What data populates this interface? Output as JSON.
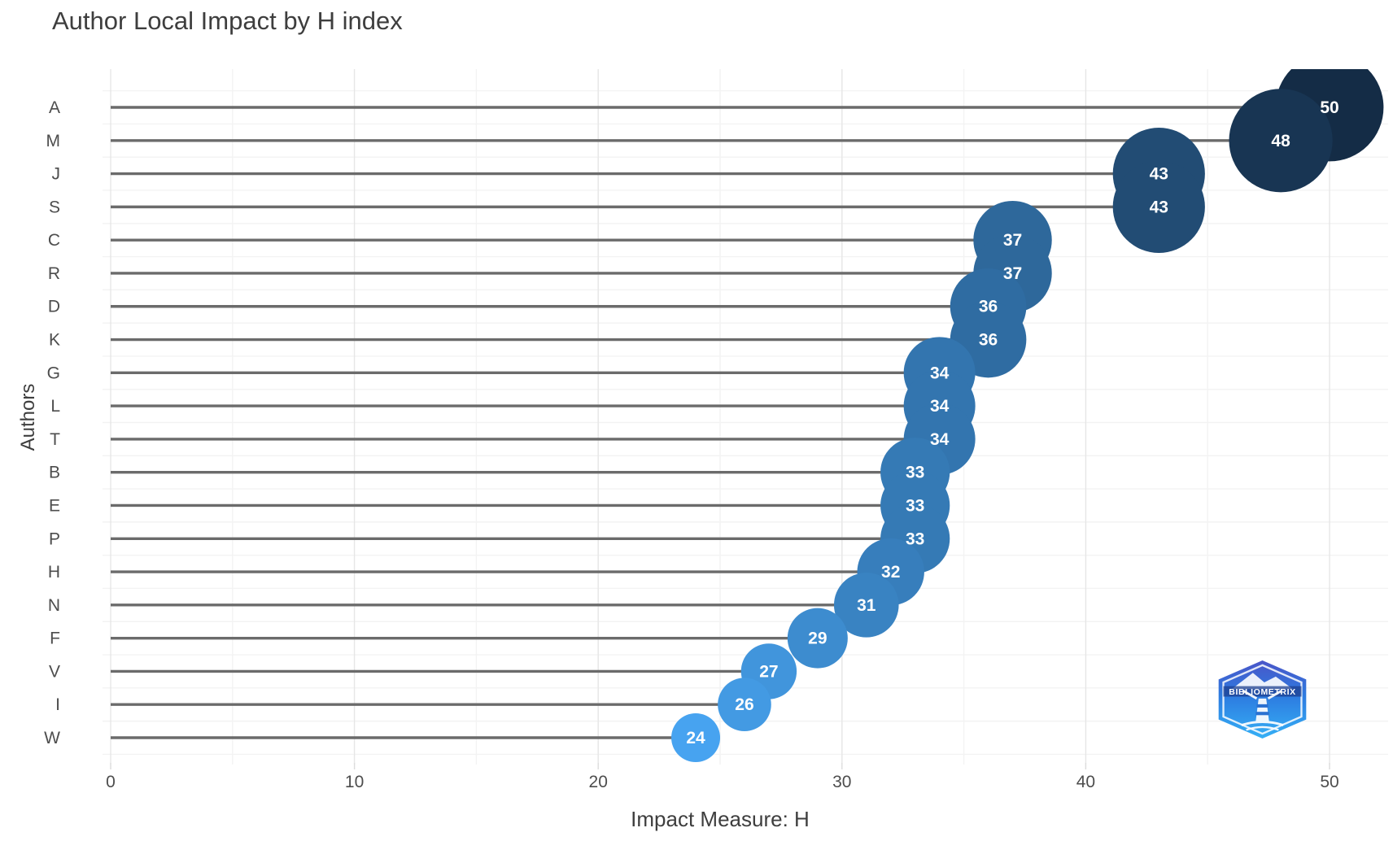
{
  "title": "Author Local Impact by H index",
  "x_axis": {
    "label": "Impact Measure: H",
    "ticks": [
      "0",
      "10",
      "20",
      "30",
      "40",
      "50"
    ]
  },
  "y_axis": {
    "label": "Authors"
  },
  "chart_data": {
    "type": "scatter",
    "style": "lollipop-bubble",
    "title": "Author Local Impact by H index",
    "xlabel": "Impact Measure: H",
    "ylabel": "Authors",
    "xlim": [
      0,
      50
    ],
    "x_ticks": [
      0,
      10,
      20,
      30,
      40,
      50
    ],
    "grid": true,
    "legend": "none",
    "categories": [
      "A",
      "M",
      "J",
      "S",
      "C",
      "R",
      "D",
      "K",
      "G",
      "L",
      "T",
      "B",
      "E",
      "P",
      "H",
      "N",
      "F",
      "V",
      "I",
      "W"
    ],
    "values": [
      50,
      48,
      43,
      43,
      37,
      37,
      36,
      36,
      34,
      34,
      34,
      33,
      33,
      33,
      32,
      31,
      29,
      27,
      26,
      24
    ]
  },
  "colors": {
    "bubble_low": "#47A3F0",
    "bubble_high": "#142C46",
    "stem": "#6B6B6B",
    "grid_major": "#E6E6E6",
    "grid_minor": "#F3F3F3",
    "bubble_label": "#FFFFFF",
    "title_text": "#3E3E3E",
    "axis_text": "#4D4D4D",
    "logo_top": "#4A55C8",
    "logo_bottom": "#35AFF5"
  },
  "logo": {
    "name": "bibliometrix",
    "text": "BIBLIOMETRIX"
  }
}
